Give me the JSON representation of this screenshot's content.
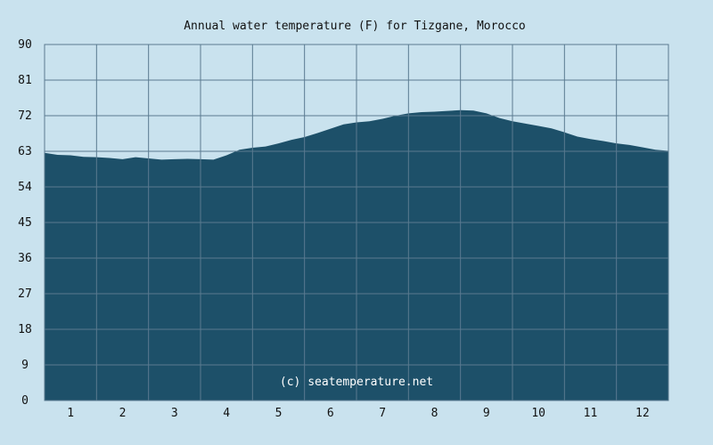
{
  "colors": {
    "background": "#c9e2ee",
    "plot_background": "#c9e2ee",
    "area_fill": "#1d5069",
    "grid": "#5a7a90",
    "text": "#111111",
    "credit": "#ffffff"
  },
  "credit": "(c) seatemperature.net",
  "chart_data": {
    "type": "area",
    "title": "Annual water temperature (F) for Tizgane, Morocco",
    "xlabel": "",
    "ylabel": "",
    "xlim": [
      0.5,
      12.5
    ],
    "ylim": [
      0,
      90
    ],
    "grid": true,
    "x_ticks": [
      1,
      2,
      3,
      4,
      5,
      6,
      7,
      8,
      9,
      10,
      11,
      12
    ],
    "x_tick_labels": [
      "1",
      "2",
      "3",
      "4",
      "5",
      "6",
      "7",
      "8",
      "9",
      "10",
      "11",
      "12"
    ],
    "y_ticks": [
      0,
      9,
      18,
      27,
      36,
      45,
      54,
      63,
      72,
      81,
      90
    ],
    "y_tick_labels": [
      "0",
      "9",
      "18",
      "27",
      "36",
      "45",
      "54",
      "63",
      "72",
      "81",
      "90"
    ],
    "series": [
      {
        "x": [
          0.5,
          0.75,
          1.0,
          1.25,
          1.5,
          1.75,
          2.0,
          2.25,
          2.5,
          2.75,
          3.0,
          3.25,
          3.5,
          3.75,
          4.0,
          4.25,
          4.5,
          4.75,
          5.0,
          5.25,
          5.5,
          5.75,
          6.0,
          6.25,
          6.5,
          6.75,
          7.0,
          7.25,
          7.5,
          7.75,
          8.0,
          8.25,
          8.5,
          8.75,
          9.0,
          9.25,
          9.5,
          9.75,
          10.0,
          10.25,
          10.5,
          10.75,
          11.0,
          11.25,
          11.5,
          11.75,
          12.0,
          12.25,
          12.5
        ],
        "values": [
          62.6,
          62.1,
          62.0,
          61.6,
          61.5,
          61.3,
          61.0,
          61.5,
          61.2,
          60.9,
          61.0,
          61.1,
          61.0,
          60.9,
          62.0,
          63.4,
          63.9,
          64.2,
          65.0,
          65.9,
          66.6,
          67.6,
          68.7,
          69.8,
          70.3,
          70.6,
          71.2,
          72.0,
          72.6,
          72.9,
          73.0,
          73.2,
          73.4,
          73.3,
          72.6,
          71.4,
          70.6,
          70.0,
          69.4,
          68.8,
          67.8,
          66.7,
          66.1,
          65.6,
          65.0,
          64.6,
          64.0,
          63.4,
          63.1
        ]
      }
    ]
  }
}
